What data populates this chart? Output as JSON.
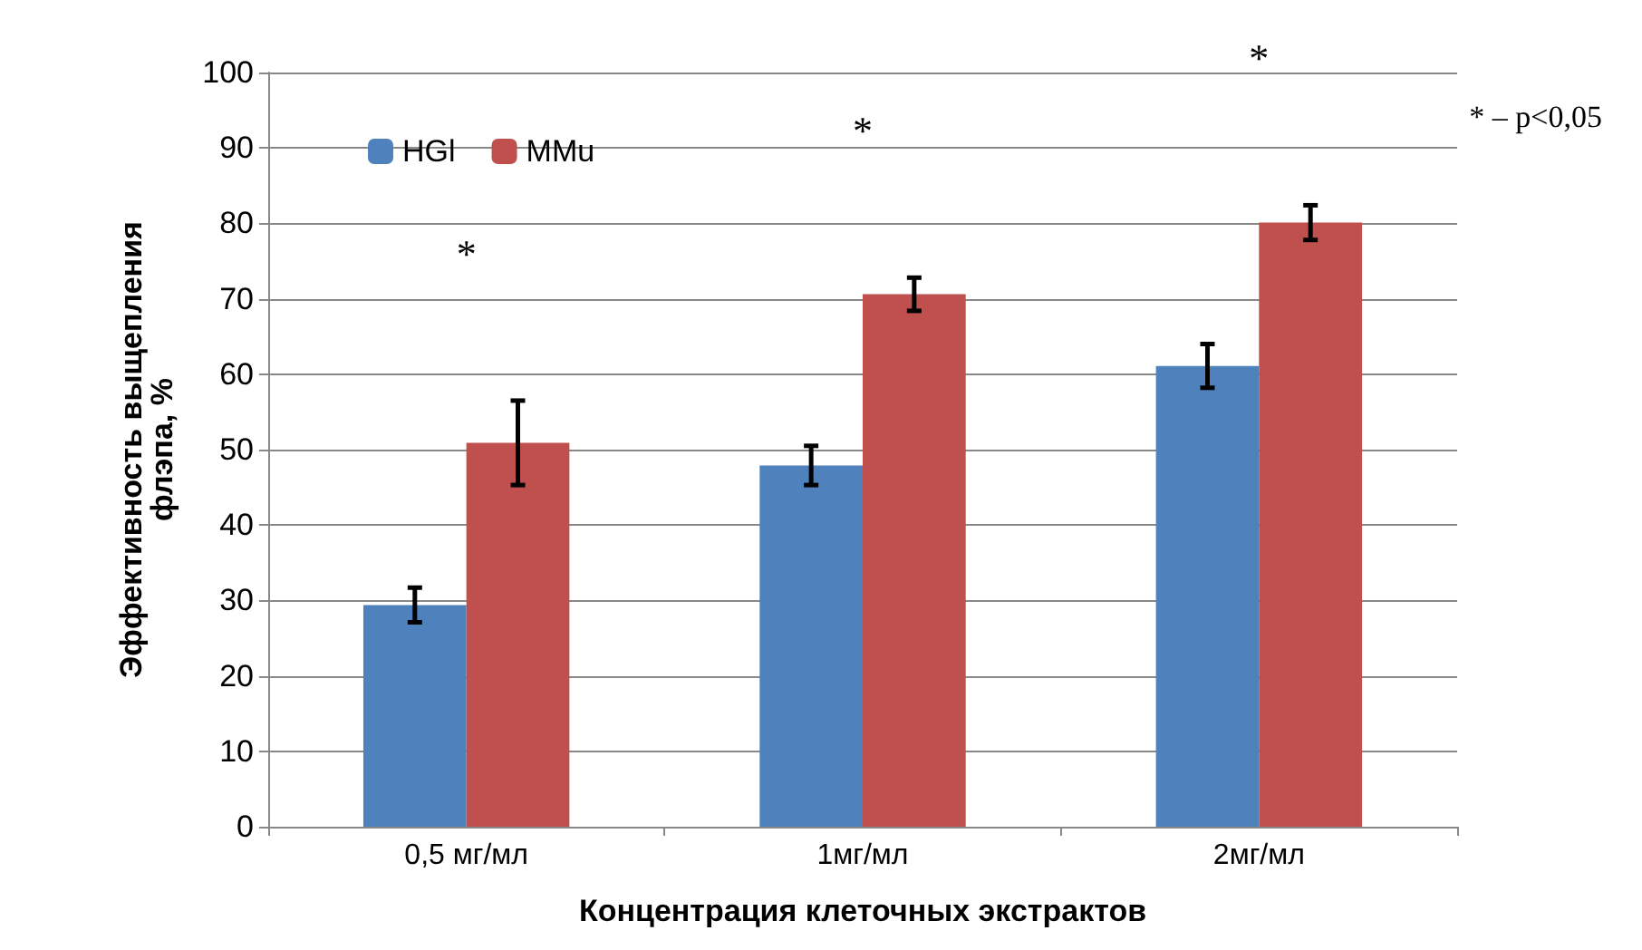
{
  "chart_data": {
    "type": "bar",
    "xlabel": "Концентрация клеточных экстрактов",
    "ylabel": "Эффективность выщепления\nфлэпа, %",
    "categories": [
      "0,5 мг/мл",
      "1мг/мл",
      "2мг/мл"
    ],
    "series": [
      {
        "name": "HGl",
        "color": "#4f81bd",
        "values": [
          29.4,
          47.9,
          61.1
        ],
        "errors": [
          2.3,
          2.6,
          2.9
        ]
      },
      {
        "name": "MMu",
        "color": "#c0504d",
        "values": [
          50.9,
          70.6,
          80.1
        ],
        "errors": [
          5.6,
          2.2,
          2.3
        ]
      }
    ],
    "ylim": [
      0,
      100
    ],
    "yticks": [
      0,
      10,
      20,
      30,
      40,
      50,
      60,
      70,
      80,
      90,
      100
    ],
    "grid": "y",
    "legend": "top left",
    "annotations": [
      "*",
      "*",
      "*",
      "* – p<0,05"
    ]
  }
}
